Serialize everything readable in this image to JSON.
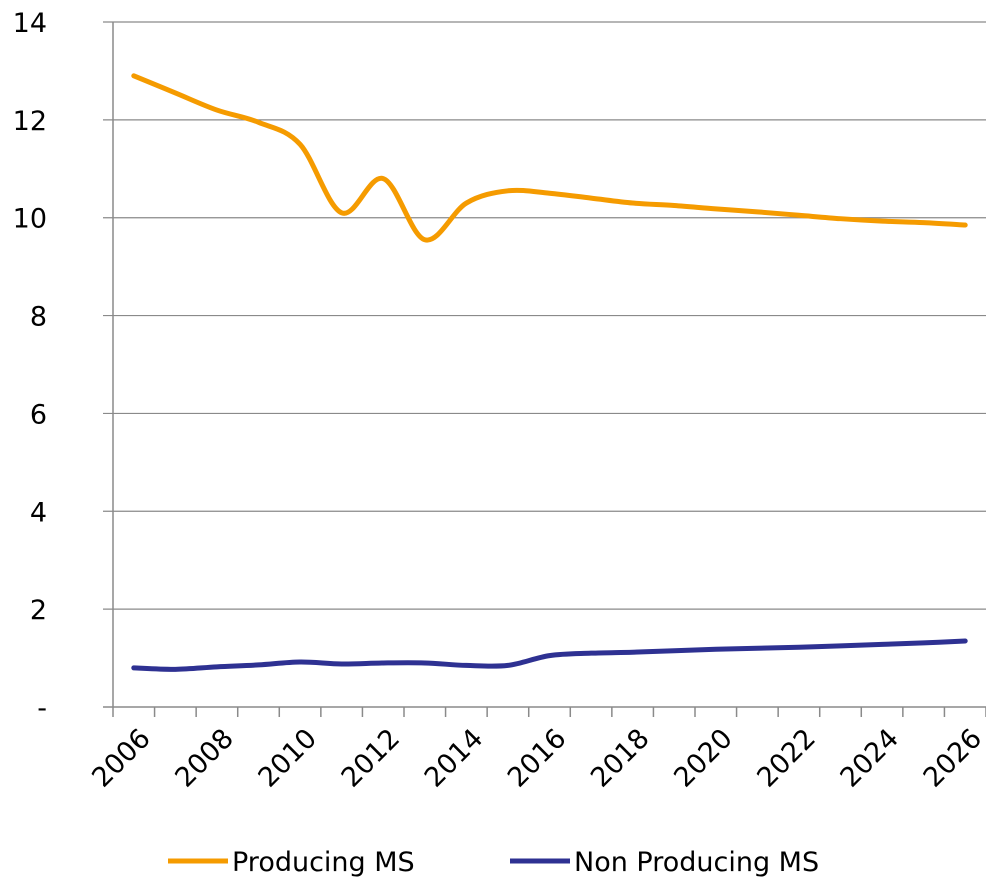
{
  "chart_data": {
    "type": "line",
    "x": [
      2006,
      2007,
      2008,
      2009,
      2010,
      2011,
      2012,
      2013,
      2014,
      2015,
      2016,
      2017,
      2018,
      2019,
      2020,
      2021,
      2022,
      2023,
      2024,
      2025,
      2026
    ],
    "series": [
      {
        "name": "Producing MS",
        "color": "#F59B00",
        "values": [
          12.9,
          12.55,
          12.2,
          11.95,
          11.5,
          10.1,
          10.8,
          9.55,
          10.3,
          10.55,
          10.5,
          10.4,
          10.3,
          10.25,
          10.18,
          10.12,
          10.05,
          9.98,
          9.93,
          9.9,
          9.85
        ]
      },
      {
        "name": "Non Producing MS",
        "color": "#2E3192",
        "values": [
          0.8,
          0.77,
          0.82,
          0.86,
          0.92,
          0.88,
          0.9,
          0.9,
          0.85,
          0.85,
          1.05,
          1.1,
          1.12,
          1.15,
          1.18,
          1.2,
          1.22,
          1.25,
          1.28,
          1.31,
          1.35
        ]
      }
    ],
    "ylim": [
      0,
      14
    ],
    "y_ticks": [
      {
        "value": 0,
        "label": "-"
      },
      {
        "value": 2,
        "label": "2"
      },
      {
        "value": 4,
        "label": "4"
      },
      {
        "value": 6,
        "label": "6"
      },
      {
        "value": 8,
        "label": "8"
      },
      {
        "value": 10,
        "label": "10"
      },
      {
        "value": 12,
        "label": "12"
      },
      {
        "value": 14,
        "label": "14"
      }
    ],
    "x_tick_labels": [
      "2006",
      "2008",
      "2010",
      "2012",
      "2014",
      "2016",
      "2018",
      "2020",
      "2022",
      "2024",
      "2026"
    ],
    "grid": true,
    "legend_position": "bottom"
  }
}
